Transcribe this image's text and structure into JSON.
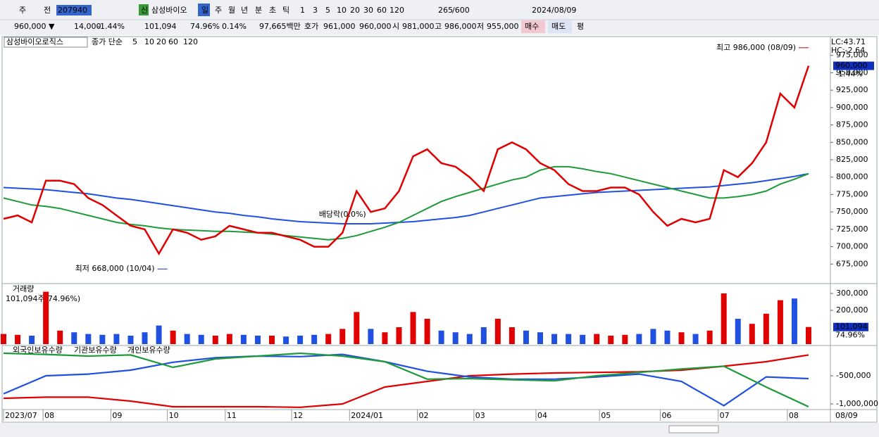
{
  "toolbar": [
    "주",
    "전",
    "207940",
    "삼성바이오",
    "신",
    "일",
    "주",
    "월",
    "년",
    "분",
    "초",
    "틱",
    "1",
    "3",
    "5",
    "10",
    "20",
    "30",
    "60",
    "120",
    "265",
    "/600",
    "2024/08/09"
  ],
  "quote_bar": [
    "960,000 ▼",
    "14,000",
    "-1.44%",
    "101,094",
    "74.96%",
    "0.14%",
    "97,665백만",
    "호가",
    "961,000",
    "960,000",
    "시",
    "981,000",
    "고",
    "986,000",
    "저",
    "955,000",
    "매수",
    "매도",
    "평"
  ],
  "chart_data": [
    {
      "type": "line",
      "title": "삼성바이오로직스",
      "legend_label": "종가 단순",
      "legend_extra": [
        {
          "name": "10",
          "color": "#ff8c00"
        },
        {
          "name": "20",
          "color": "#e8d800"
        }
      ],
      "info": [
        "LC:43.71",
        "HC:-2.64"
      ],
      "x": [
        0,
        1,
        2,
        3,
        4,
        5,
        6,
        7,
        8,
        9,
        10,
        11,
        12,
        13,
        14,
        15,
        16,
        17,
        18,
        19,
        20,
        21,
        22,
        23,
        24,
        25,
        26,
        27,
        28,
        29,
        30,
        31,
        32,
        33,
        34,
        35,
        36,
        37,
        38,
        39,
        40,
        41,
        42,
        43,
        44,
        45,
        46,
        47,
        48,
        49,
        50,
        51,
        52,
        53,
        54,
        55,
        56,
        57
      ],
      "xlim": [
        0,
        57
      ],
      "xticks": [
        {
          "value": 0,
          "label": "2023/07"
        },
        {
          "value": 2.8,
          "label": "08"
        },
        {
          "value": 7.6,
          "label": "09"
        },
        {
          "value": 11.6,
          "label": "10"
        },
        {
          "value": 15.7,
          "label": "11"
        },
        {
          "value": 20.4,
          "label": "12"
        },
        {
          "value": 24.5,
          "label": "2024/01"
        },
        {
          "value": 29.3,
          "label": "02"
        },
        {
          "value": 33.3,
          "label": "03"
        },
        {
          "value": 37.7,
          "label": "04"
        },
        {
          "value": 42.2,
          "label": "05"
        },
        {
          "value": 46.5,
          "label": "06"
        },
        {
          "value": 50.6,
          "label": "07"
        },
        {
          "value": 55.5,
          "label": "08"
        }
      ],
      "x_end_label": "08/09",
      "series": [
        {
          "name": "5",
          "color": "#e00000",
          "values": [
            740000,
            745000,
            735000,
            795000,
            795000,
            790000,
            770000,
            760000,
            745000,
            730000,
            725000,
            690000,
            725000,
            720000,
            710000,
            715000,
            730000,
            725000,
            720000,
            720000,
            715000,
            710000,
            700000,
            700000,
            720000,
            780000,
            750000,
            755000,
            780000,
            830000,
            840000,
            820000,
            815000,
            800000,
            780000,
            840000,
            850000,
            840000,
            820000,
            810000,
            790000,
            780000,
            780000,
            785000,
            785000,
            775000,
            750000,
            730000,
            740000,
            735000,
            740000,
            810000,
            800000,
            820000,
            850000,
            920000,
            900000,
            960000
          ]
        },
        {
          "name": "60",
          "color": "#1f9a3a",
          "values": [
            770000,
            765000,
            760000,
            758000,
            755000,
            750000,
            745000,
            740000,
            735000,
            732000,
            730000,
            727000,
            725000,
            724000,
            723000,
            722000,
            722000,
            721000,
            720000,
            718000,
            716000,
            714000,
            712000,
            710000,
            712000,
            716000,
            722000,
            728000,
            735000,
            745000,
            755000,
            765000,
            772000,
            778000,
            784000,
            790000,
            796000,
            800000,
            810000,
            815000,
            815000,
            812000,
            808000,
            805000,
            800000,
            795000,
            790000,
            785000,
            780000,
            775000,
            770000,
            770000,
            772000,
            775000,
            780000,
            790000,
            797000,
            805000
          ]
        },
        {
          "name": "120",
          "color": "#2050e0",
          "values": [
            785000,
            784000,
            783000,
            782000,
            780000,
            778000,
            776000,
            773000,
            770000,
            768000,
            765000,
            762000,
            759000,
            756000,
            753000,
            750000,
            748000,
            745000,
            743000,
            740000,
            738000,
            736000,
            735000,
            734000,
            733000,
            733000,
            733000,
            734000,
            735000,
            736000,
            738000,
            740000,
            742000,
            745000,
            750000,
            755000,
            760000,
            765000,
            770000,
            772000,
            774000,
            776000,
            778000,
            779000,
            780000,
            781000,
            782000,
            783000,
            784000,
            785000,
            786000,
            788000,
            790000,
            792000,
            795000,
            798000,
            801000,
            805000
          ]
        }
      ],
      "ylim": [
        648000,
        1002000
      ],
      "yticks": [
        {
          "value": 675000,
          "label": "675,000"
        },
        {
          "value": 700000,
          "label": "700,000"
        },
        {
          "value": 725000,
          "label": "725,000"
        },
        {
          "value": 750000,
          "label": "750,000"
        },
        {
          "value": 775000,
          "label": "775,000"
        },
        {
          "value": 800000,
          "label": "800,000"
        },
        {
          "value": 825000,
          "label": "825,000"
        },
        {
          "value": 850000,
          "label": "850,000"
        },
        {
          "value": 875000,
          "label": "875,000"
        },
        {
          "value": 900000,
          "label": "900,000"
        },
        {
          "value": 925000,
          "label": "925,000"
        },
        {
          "value": 950000,
          "label": "950,000"
        },
        {
          "value": 975000,
          "label": "975,000"
        }
      ],
      "last_label": {
        "value": 960000,
        "label": "960,000"
      },
      "last_change": "-1.44%",
      "annotations": [
        {
          "text": "최고 986,000 (08/09)",
          "x": 57,
          "y": 986000
        },
        {
          "text": "최저 668,000 (10/04)",
          "x": 11.6,
          "y": 668000
        },
        {
          "text": "배당락(0.0%)",
          "x": 24,
          "y": 720000
        }
      ]
    },
    {
      "type": "bar",
      "title": "거래량",
      "subtitle": "101,094주(74.96%)",
      "color_up": "#e00000",
      "color_down": "#2050e0",
      "values": [
        60000,
        55000,
        50000,
        310000,
        80000,
        70000,
        60000,
        55000,
        60000,
        50000,
        70000,
        110000,
        80000,
        60000,
        55000,
        50000,
        60000,
        55000,
        50000,
        50000,
        45000,
        50000,
        55000,
        60000,
        90000,
        190000,
        90000,
        70000,
        100000,
        190000,
        150000,
        80000,
        70000,
        60000,
        100000,
        150000,
        100000,
        80000,
        70000,
        60000,
        60000,
        55000,
        60000,
        50000,
        55000,
        60000,
        90000,
        80000,
        70000,
        60000,
        80000,
        300000,
        150000,
        120000,
        180000,
        260000,
        270000,
        101094
      ],
      "ylim": [
        0,
        354000
      ],
      "yticks": [
        {
          "value": 200000,
          "label": "200,000"
        },
        {
          "value": 300000,
          "label": "300,000"
        }
      ],
      "last_label": {
        "value": 101094,
        "label": "101,094"
      },
      "last_ratio": "74.96%"
    },
    {
      "type": "line",
      "x": [
        0,
        3,
        6,
        9,
        12,
        15,
        18,
        21,
        24,
        27,
        30,
        33,
        36,
        39,
        42,
        45,
        48,
        51,
        54,
        57
      ],
      "series": [
        {
          "name": "외국인보유수량",
          "color": "#e00000",
          "values": [
            -900000,
            -880000,
            -880000,
            -950000,
            -1050000,
            -1050000,
            -1050000,
            -1060000,
            -1000000,
            -700000,
            -600000,
            -500000,
            -470000,
            -450000,
            -440000,
            -430000,
            -400000,
            -330000,
            -250000,
            -130000
          ]
        },
        {
          "name": "기관보유수량",
          "color": "#2050e0",
          "values": [
            -820000,
            -500000,
            -470000,
            -400000,
            -260000,
            -180000,
            -150000,
            -160000,
            -120000,
            -250000,
            -420000,
            -520000,
            -560000,
            -560000,
            -520000,
            -470000,
            -600000,
            -1030000,
            -520000,
            -550000
          ]
        },
        {
          "name": "개인보유수량",
          "color": "#1f9a3a",
          "values": [
            -100000,
            -120000,
            -150000,
            -130000,
            -350000,
            -200000,
            -150000,
            -100000,
            -150000,
            -250000,
            -560000,
            -550000,
            -570000,
            -590000,
            -500000,
            -440000,
            -380000,
            -330000,
            -700000,
            -1050000
          ]
        }
      ],
      "ylim": [
        -1100000,
        25000
      ],
      "yticks": [
        {
          "value": -500000,
          "label": "-500,000"
        },
        {
          "value": -1000000,
          "label": "-1,000,000"
        }
      ]
    }
  ]
}
